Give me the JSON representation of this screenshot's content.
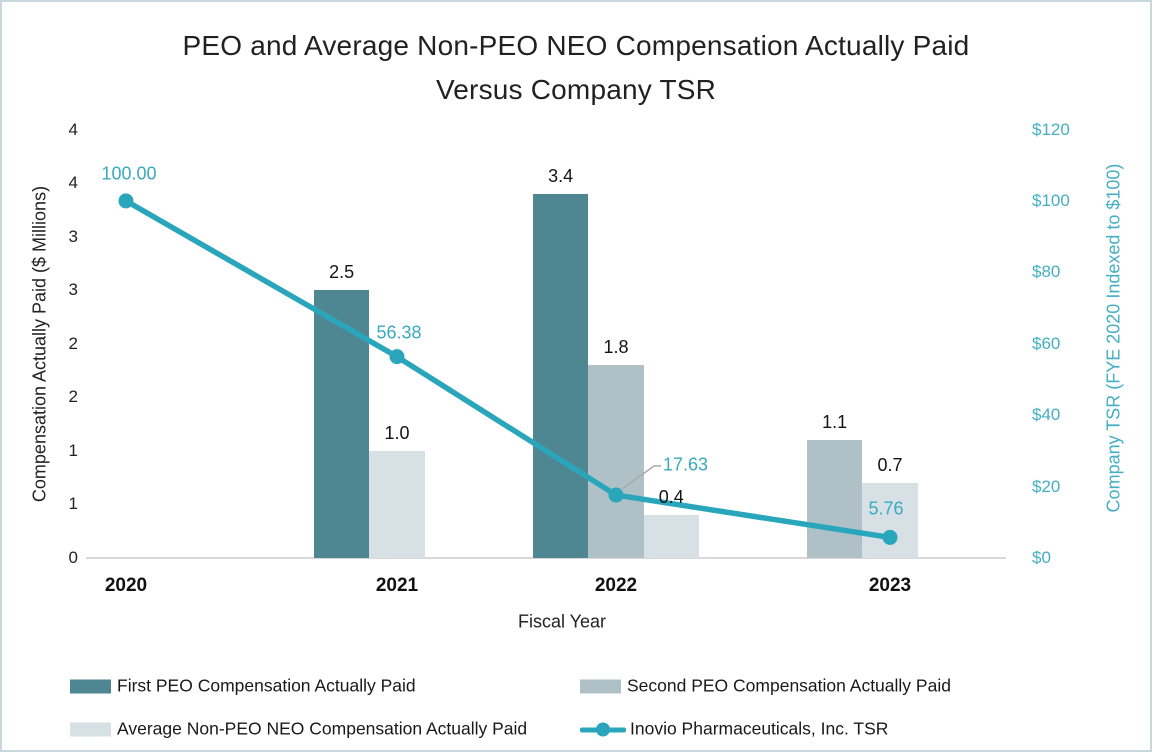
{
  "title": {
    "line1": "PEO and Average Non-PEO NEO Compensation Actually Paid",
    "line2": "Versus Company TSR"
  },
  "axes": {
    "left": {
      "title": "Compensation Actually Paid ($ Millions)",
      "ticks": [
        "4",
        "4",
        "3",
        "3",
        "2",
        "2",
        "1",
        "1",
        "0"
      ]
    },
    "right": {
      "title": "Company TSR (FYE 2020 Indexed to $100)",
      "ticks": [
        "$120",
        "$100",
        "$80",
        "$60",
        "$40",
        "$20",
        "$0"
      ]
    },
    "x": {
      "title": "Fiscal Year",
      "ticks": [
        "2020",
        "2021",
        "2022",
        "2023"
      ]
    }
  },
  "chart_data": {
    "type": "bar+line",
    "categories": [
      "2020",
      "2021",
      "2022",
      "2023"
    ],
    "series": [
      {
        "name": "First PEO Compensation Actually Paid",
        "type": "bar",
        "color": "#4e8791",
        "values": [
          null,
          2.5,
          3.4,
          null
        ],
        "labels": [
          null,
          "2.5",
          "3.4",
          null
        ]
      },
      {
        "name": "Second PEO Compensation Actually Paid",
        "type": "bar",
        "color": "#afc1c7",
        "values": [
          null,
          null,
          1.8,
          1.1
        ],
        "labels": [
          null,
          null,
          "1.8",
          "1.1"
        ]
      },
      {
        "name": "Average Non-PEO NEO Compensation Actually Paid",
        "type": "bar",
        "color": "#d7e0e4",
        "values": [
          null,
          1.0,
          0.4,
          0.7
        ],
        "labels": [
          null,
          "1.0",
          "0.4",
          "0.7"
        ]
      },
      {
        "name": "Inovio Pharmaceuticals, Inc. TSR",
        "type": "line",
        "color": "#2aa6bc",
        "values": [
          100.0,
          56.38,
          17.63,
          5.76
        ],
        "labels": [
          "100.00",
          "56.38",
          "17.63",
          "5.76"
        ]
      }
    ],
    "left_axis_range": [
      0,
      4
    ],
    "right_axis_range": [
      0,
      120
    ],
    "grid": false,
    "legend_position": "bottom"
  },
  "legend": {
    "items": [
      {
        "label": "First PEO Compensation Actually Paid",
        "marker": "bar",
        "color": "#4e8791"
      },
      {
        "label": "Second PEO Compensation Actually Paid",
        "marker": "bar",
        "color": "#afc1c7"
      },
      {
        "label": "Average Non-PEO NEO Compensation Actually Paid",
        "marker": "bar",
        "color": "#d7e0e4"
      },
      {
        "label": "Inovio Pharmaceuticals, Inc. TSR",
        "marker": "line",
        "color": "#2aa6bc"
      }
    ]
  },
  "colors": {
    "teal_text": "#38aabf",
    "right_axis_text": "#44afc2",
    "axis_line": "#d8d8d8",
    "leader_line": "#aaaaaa",
    "border": "#c9d8de"
  }
}
